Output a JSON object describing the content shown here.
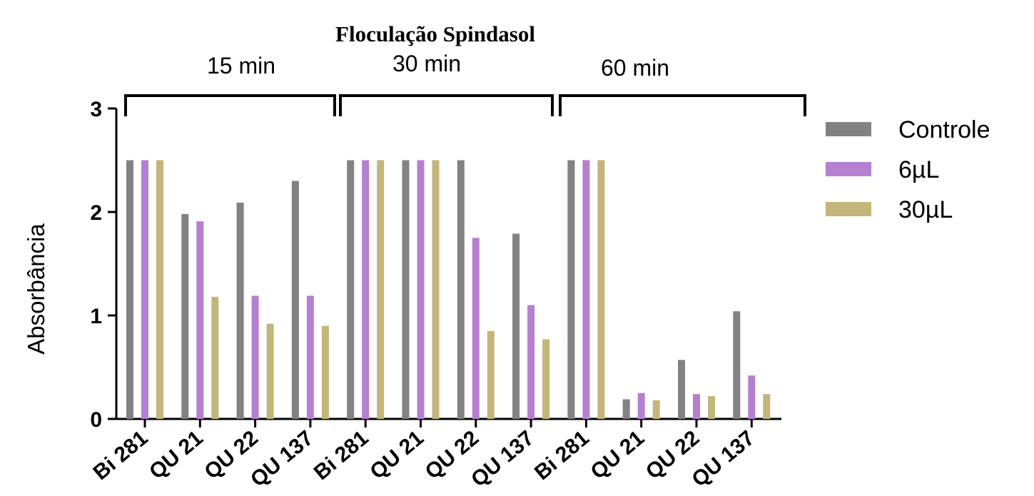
{
  "chart_data": {
    "type": "bar",
    "title": "Floculação Spindasol",
    "ylabel": "Absorbância",
    "xlabel": "",
    "ylim": [
      0,
      3
    ],
    "yticks": [
      "0",
      "1",
      "2",
      "3"
    ],
    "groups": [
      {
        "label": "15 min",
        "categories": [
          "Bi 281",
          "QU 21",
          "QU 22",
          "QU 137"
        ]
      },
      {
        "label": "30 min",
        "categories": [
          "Bi 281",
          "QU 21",
          "QU 22",
          "QU 137"
        ]
      },
      {
        "label": "60 min",
        "categories": [
          "Bi 281",
          "QU 21",
          "QU 22",
          "QU 137"
        ]
      }
    ],
    "series": [
      {
        "name": "Controle",
        "color": "#828282",
        "values": [
          2.5,
          1.98,
          2.09,
          2.3,
          2.5,
          2.5,
          2.5,
          1.79,
          2.5,
          0.19,
          0.57,
          1.04
        ]
      },
      {
        "name": "6µL",
        "color": "#b67fd0",
        "values": [
          2.5,
          1.91,
          1.19,
          1.19,
          2.5,
          2.5,
          1.75,
          1.1,
          2.5,
          0.25,
          0.24,
          0.42
        ]
      },
      {
        "name": "30µL",
        "color": "#c3b67a",
        "values": [
          2.5,
          1.18,
          0.92,
          0.9,
          2.5,
          2.5,
          0.85,
          0.77,
          2.5,
          0.18,
          0.22,
          0.24
        ]
      }
    ],
    "legend": "right",
    "grid": false
  }
}
